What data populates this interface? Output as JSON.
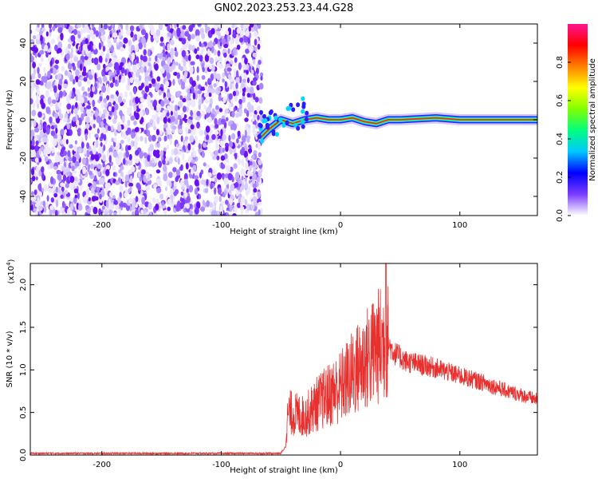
{
  "title": "GN02.2023.253.23.44.G28",
  "chart_data": [
    {
      "type": "heatmap",
      "xlabel": "Height of straight line (km)",
      "ylabel": "Frequency (Hz)",
      "xlim": [
        -260,
        165
      ],
      "ylim": [
        -50,
        50
      ],
      "xticks": [
        -200,
        -100,
        0,
        100
      ],
      "yticks": [
        -40,
        -20,
        0,
        20,
        40
      ],
      "noise_region_x": [
        -260,
        -68
      ],
      "signal_track": [
        {
          "x": -68,
          "y": -10
        },
        {
          "x": -60,
          "y": -5
        },
        {
          "x": -50,
          "y": 0
        },
        {
          "x": -40,
          "y": -2
        },
        {
          "x": -30,
          "y": 0
        },
        {
          "x": -20,
          "y": 1
        },
        {
          "x": -10,
          "y": 0
        },
        {
          "x": 0,
          "y": 0
        },
        {
          "x": 10,
          "y": 1
        },
        {
          "x": 20,
          "y": -1
        },
        {
          "x": 30,
          "y": -2
        },
        {
          "x": 40,
          "y": 0
        },
        {
          "x": 50,
          "y": 0
        },
        {
          "x": 80,
          "y": 1
        },
        {
          "x": 100,
          "y": 0
        },
        {
          "x": 130,
          "y": 0
        },
        {
          "x": 165,
          "y": 0
        }
      ],
      "colorbar": {
        "label": "Normalized spectral amplitude",
        "range": [
          0,
          1
        ],
        "ticks": [
          0.0,
          0.2,
          0.4,
          0.6,
          0.8
        ],
        "colors": [
          "#ffffff",
          "#7a3cff",
          "#0000ff",
          "#00c8ff",
          "#00ff80",
          "#80ff00",
          "#ffff00",
          "#ff8000",
          "#ff0000",
          "#ff1493"
        ]
      }
    },
    {
      "type": "line",
      "xlabel": "Height of straight line (km)",
      "ylabel": "SNR (10 * v/v)",
      "y_multiplier": "(x10",
      "y_multiplier_exp": "4",
      "y_multiplier_close": ")",
      "xlim": [
        -260,
        165
      ],
      "ylim": [
        0,
        2.25
      ],
      "xticks": [
        -200,
        -100,
        0,
        100
      ],
      "yticks": [
        "0.0",
        "0.5",
        "1.0",
        "1.5",
        "2.0"
      ],
      "color": "#e8302e",
      "envelope": [
        {
          "x": -260,
          "y": 0.02
        },
        {
          "x": -50,
          "y": 0.02
        },
        {
          "x": -46,
          "y": 0.1
        },
        {
          "x": -44,
          "y": 0.5
        },
        {
          "x": -30,
          "y": 0.45
        },
        {
          "x": -20,
          "y": 0.6
        },
        {
          "x": -10,
          "y": 0.7
        },
        {
          "x": 0,
          "y": 0.8
        },
        {
          "x": 10,
          "y": 0.95
        },
        {
          "x": 20,
          "y": 1.1
        },
        {
          "x": 30,
          "y": 1.25
        },
        {
          "x": 38,
          "y": 1.35
        },
        {
          "x": 45,
          "y": 1.2
        },
        {
          "x": 55,
          "y": 1.1
        },
        {
          "x": 80,
          "y": 1.02
        },
        {
          "x": 100,
          "y": 0.93
        },
        {
          "x": 120,
          "y": 0.85
        },
        {
          "x": 140,
          "y": 0.75
        },
        {
          "x": 165,
          "y": 0.65
        }
      ],
      "peak": {
        "x": 38,
        "y": 2.25
      }
    }
  ]
}
